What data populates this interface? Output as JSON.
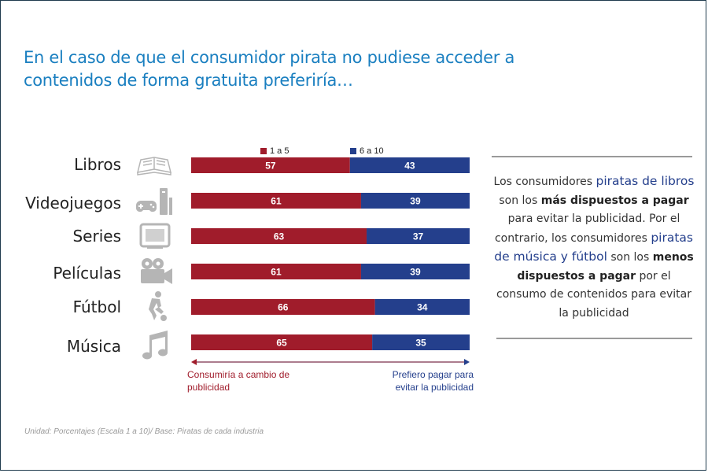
{
  "title": {
    "line1": "En el caso de que el consumidor pirata no pudiese acceder a",
    "line2": "contenidos de forma gratuita preferiría…"
  },
  "colors": {
    "red": "#a01c2b",
    "blue": "#243f8c",
    "title": "#1a7fc0"
  },
  "icons": [
    "book-icon",
    "game-console-icon",
    "tv-icon",
    "movie-camera-icon",
    "football-player-icon",
    "music-note-icon"
  ],
  "chart_data": {
    "type": "bar",
    "orientation": "horizontal",
    "stacked": true,
    "categories": [
      "Libros",
      "Videojuegos",
      "Series",
      "Películas",
      "Fútbol",
      "Música"
    ],
    "series": [
      {
        "name": "1 a 5",
        "values": [
          57,
          61,
          63,
          61,
          66,
          65
        ],
        "color": "#a01c2b"
      },
      {
        "name": "6 a 10",
        "values": [
          43,
          39,
          37,
          39,
          34,
          35
        ],
        "color": "#243f8c"
      }
    ],
    "xlim": [
      0,
      100
    ],
    "legend": "top",
    "axis_left_label": [
      "Consumiría a cambio de",
      "publicidad"
    ],
    "axis_right_label": [
      "Prefiero pagar para",
      "evitar la publicidad"
    ]
  },
  "side_note": {
    "t1": "Los consumidores ",
    "t2": "piratas de libros",
    "t3": " son los ",
    "t4": "más dispuestos a pagar",
    "t5": " para evitar la publicidad. Por el contrario, los consumidores ",
    "t6": "piratas de música y fútbol",
    "t7": " son los ",
    "t8": "menos dispuestos a pagar",
    "t9": " por el consumo de contenidos para evitar la publicidad"
  },
  "footnote": "Unidad: Porcentajes (Escala 1 a 10)/ Base: Piratas de cada industria"
}
